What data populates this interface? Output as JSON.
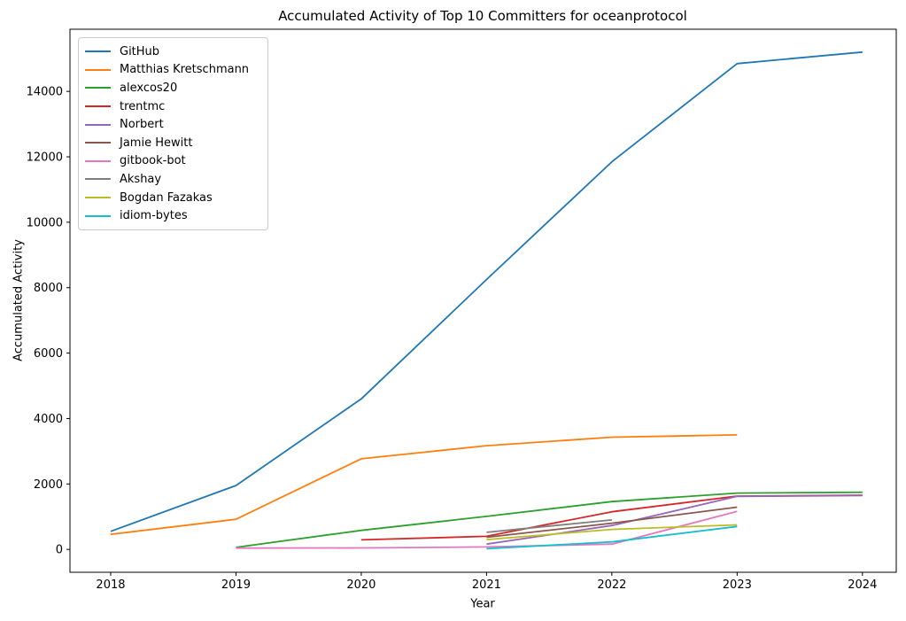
{
  "figure": {
    "title": "Accumulated Activity of Top 10 Committers for oceanprotocol",
    "xlabel": "Year",
    "ylabel": "Accumulated Activity"
  },
  "chart_data": {
    "type": "line",
    "title": "Accumulated Activity of Top 10 Committers for oceanprotocol",
    "xlabel": "Year",
    "ylabel": "Accumulated Activity",
    "xlim": [
      2017.675,
      2024.27
    ],
    "ylim": [
      -700,
      15900
    ],
    "xticks": [
      2018,
      2019,
      2020,
      2021,
      2022,
      2023,
      2024
    ],
    "yticks": [
      0,
      2000,
      4000,
      6000,
      8000,
      10000,
      12000,
      14000
    ],
    "grid": false,
    "legend_position": "upper left",
    "series": [
      {
        "name": "GitHub",
        "color": "#1f77b4",
        "points": [
          [
            2018,
            550
          ],
          [
            2019,
            1950
          ],
          [
            2020,
            4600
          ],
          [
            2021,
            8250
          ],
          [
            2022,
            11850
          ],
          [
            2023,
            14850
          ],
          [
            2024,
            15200
          ]
        ]
      },
      {
        "name": "Matthias Kretschmann",
        "color": "#ff7f0e",
        "points": [
          [
            2018,
            460
          ],
          [
            2019,
            920
          ],
          [
            2020,
            2770
          ],
          [
            2021,
            3170
          ],
          [
            2022,
            3430
          ],
          [
            2023,
            3500
          ]
        ]
      },
      {
        "name": "alexcos20",
        "color": "#2ca02c",
        "points": [
          [
            2019,
            60
          ],
          [
            2020,
            580
          ],
          [
            2021,
            1010
          ],
          [
            2022,
            1460
          ],
          [
            2023,
            1720
          ],
          [
            2024,
            1745
          ]
        ]
      },
      {
        "name": "trentmc",
        "color": "#d62728",
        "points": [
          [
            2020,
            290
          ],
          [
            2021,
            400
          ],
          [
            2022,
            1150
          ],
          [
            2023,
            1630
          ],
          [
            2024,
            1655
          ]
        ]
      },
      {
        "name": "Norbert",
        "color": "#9467bd",
        "points": [
          [
            2021,
            160
          ],
          [
            2022,
            730
          ],
          [
            2023,
            1620
          ],
          [
            2024,
            1645
          ]
        ]
      },
      {
        "name": "Jamie Hewitt",
        "color": "#8c564b",
        "points": [
          [
            2021,
            370
          ],
          [
            2022,
            800
          ],
          [
            2023,
            1290
          ]
        ]
      },
      {
        "name": "gitbook-bot",
        "color": "#e377c2",
        "points": [
          [
            2019,
            40
          ],
          [
            2020,
            45
          ],
          [
            2021,
            75
          ],
          [
            2022,
            160
          ],
          [
            2023,
            1160
          ]
        ]
      },
      {
        "name": "Akshay",
        "color": "#7f7f7f",
        "points": [
          [
            2021,
            520
          ],
          [
            2022,
            900
          ]
        ]
      },
      {
        "name": "Bogdan Fazakas",
        "color": "#bcbd22",
        "points": [
          [
            2021,
            300
          ],
          [
            2022,
            610
          ],
          [
            2023,
            750
          ]
        ]
      },
      {
        "name": "idiom-bytes",
        "color": "#17becf",
        "points": [
          [
            2021,
            20
          ],
          [
            2022,
            230
          ],
          [
            2023,
            700
          ]
        ]
      }
    ]
  }
}
